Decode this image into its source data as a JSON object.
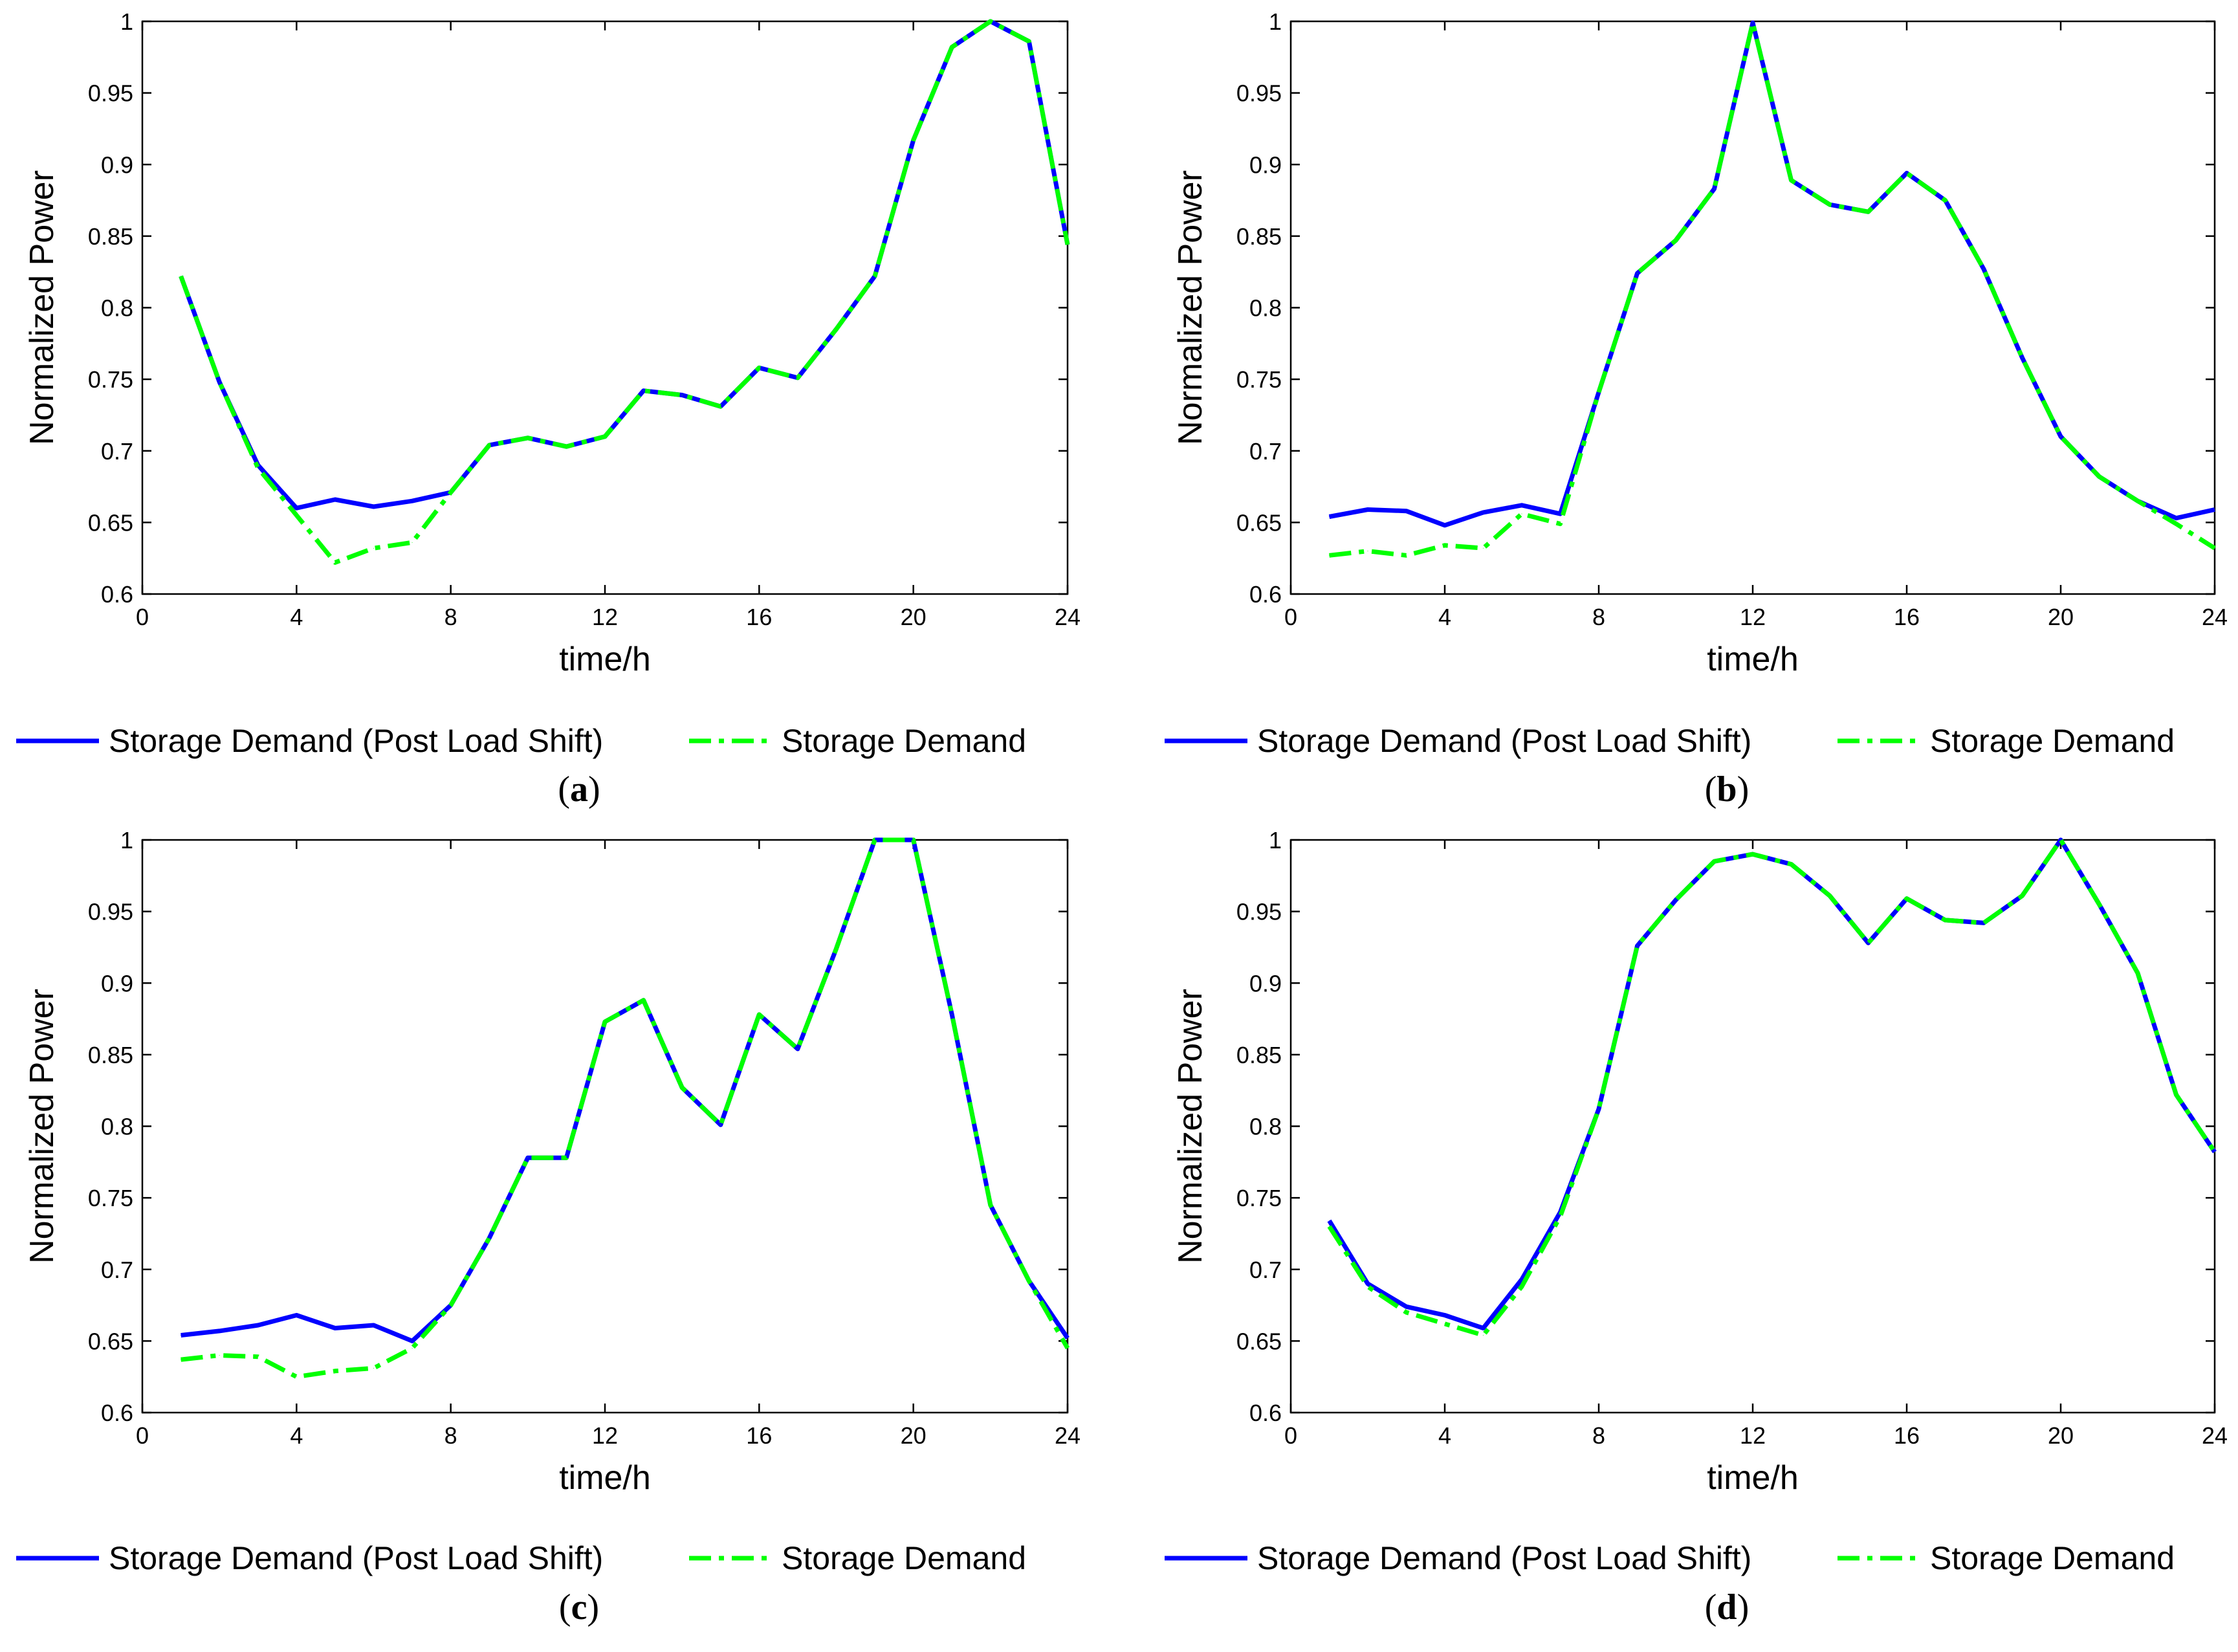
{
  "chart_data": [
    {
      "type": "line",
      "panel_label": "a",
      "xlabel": "time/h",
      "ylabel": "Normalized Power",
      "xlim": [
        0,
        24
      ],
      "ylim": [
        0.6,
        1
      ],
      "xticks": [
        "0",
        "4",
        "8",
        "12",
        "16",
        "20",
        "24"
      ],
      "yticks": [
        "0.6",
        "0.65",
        "0.7",
        "0.75",
        "0.8",
        "0.85",
        "0.9",
        "0.95",
        "1"
      ],
      "grid": false,
      "legend_position": "bottom",
      "x": [
        1,
        2,
        3,
        4,
        5,
        6,
        7,
        8,
        9,
        10,
        11,
        12,
        13,
        14,
        15,
        16,
        17,
        18,
        19,
        20,
        21,
        22,
        23,
        24
      ],
      "series": [
        {
          "name": "Storage Demand (Post Load Shift)",
          "color": "#0000ff",
          "style": "solid",
          "values": [
            0.822,
            0.748,
            0.69,
            0.66,
            0.666,
            0.661,
            0.665,
            0.671,
            0.704,
            0.709,
            0.703,
            0.71,
            0.742,
            0.739,
            0.731,
            0.758,
            0.751,
            0.785,
            0.822,
            0.917,
            0.982,
            1.0,
            0.986,
            0.844
          ]
        },
        {
          "name": "Storage Demand",
          "color": "#00ff00",
          "style": "dashdot",
          "values": [
            0.822,
            0.748,
            0.688,
            0.655,
            0.622,
            0.632,
            0.636,
            0.671,
            0.704,
            0.709,
            0.703,
            0.71,
            0.742,
            0.739,
            0.731,
            0.758,
            0.751,
            0.785,
            0.822,
            0.917,
            0.982,
            1.0,
            0.986,
            0.844
          ]
        }
      ]
    },
    {
      "type": "line",
      "panel_label": "b",
      "xlabel": "time/h",
      "ylabel": "Normalized Power",
      "xlim": [
        0,
        24
      ],
      "ylim": [
        0.6,
        1
      ],
      "xticks": [
        "0",
        "4",
        "8",
        "12",
        "16",
        "20",
        "24"
      ],
      "yticks": [
        "0.6",
        "0.65",
        "0.7",
        "0.75",
        "0.8",
        "0.85",
        "0.9",
        "0.95",
        "1"
      ],
      "grid": false,
      "legend_position": "bottom",
      "x": [
        1,
        2,
        3,
        4,
        5,
        6,
        7,
        8,
        9,
        10,
        11,
        12,
        13,
        14,
        15,
        16,
        17,
        18,
        19,
        20,
        21,
        22,
        23,
        24
      ],
      "series": [
        {
          "name": "Storage Demand (Post Load Shift)",
          "color": "#0000ff",
          "style": "solid",
          "values": [
            0.654,
            0.659,
            0.658,
            0.648,
            0.657,
            0.662,
            0.656,
            0.741,
            0.824,
            0.847,
            0.883,
            0.999,
            0.889,
            0.872,
            0.867,
            0.894,
            0.875,
            0.827,
            0.765,
            0.71,
            0.682,
            0.665,
            0.653,
            0.659
          ]
        },
        {
          "name": "Storage Demand",
          "color": "#00ff00",
          "style": "dashdot",
          "values": [
            0.627,
            0.63,
            0.627,
            0.634,
            0.632,
            0.656,
            0.649,
            0.741,
            0.824,
            0.847,
            0.883,
            0.999,
            0.889,
            0.872,
            0.867,
            0.894,
            0.875,
            0.827,
            0.765,
            0.71,
            0.682,
            0.665,
            0.649,
            0.632
          ]
        }
      ]
    },
    {
      "type": "line",
      "panel_label": "c",
      "xlabel": "time/h",
      "ylabel": "Normalized Power",
      "xlim": [
        0,
        24
      ],
      "ylim": [
        0.6,
        1
      ],
      "xticks": [
        "0",
        "4",
        "8",
        "12",
        "16",
        "20",
        "24"
      ],
      "yticks": [
        "0.6",
        "0.65",
        "0.7",
        "0.75",
        "0.8",
        "0.85",
        "0.9",
        "0.95",
        "1"
      ],
      "grid": false,
      "legend_position": "bottom",
      "x": [
        1,
        2,
        3,
        4,
        5,
        6,
        7,
        8,
        9,
        10,
        11,
        12,
        13,
        14,
        15,
        16,
        17,
        18,
        19,
        20,
        21,
        22,
        23,
        24
      ],
      "series": [
        {
          "name": "Storage Demand (Post Load Shift)",
          "color": "#0000ff",
          "style": "solid",
          "values": [
            0.654,
            0.657,
            0.661,
            0.668,
            0.659,
            0.661,
            0.65,
            0.675,
            0.722,
            0.778,
            0.778,
            0.873,
            0.888,
            0.827,
            0.801,
            0.878,
            0.854,
            0.924,
            1.0,
            1.0,
            0.878,
            0.745,
            0.692,
            0.652
          ]
        },
        {
          "name": "Storage Demand",
          "color": "#00ff00",
          "style": "dashdot",
          "values": [
            0.637,
            0.64,
            0.639,
            0.625,
            0.629,
            0.631,
            0.645,
            0.675,
            0.722,
            0.778,
            0.778,
            0.873,
            0.888,
            0.827,
            0.801,
            0.878,
            0.854,
            0.924,
            1.0,
            1.0,
            0.878,
            0.745,
            0.692,
            0.645
          ]
        }
      ]
    },
    {
      "type": "line",
      "panel_label": "d",
      "xlabel": "time/h",
      "ylabel": "Normalized Power",
      "xlim": [
        0,
        24
      ],
      "ylim": [
        0.6,
        1
      ],
      "xticks": [
        "0",
        "4",
        "8",
        "12",
        "16",
        "20",
        "24"
      ],
      "yticks": [
        "0.6",
        "0.65",
        "0.7",
        "0.75",
        "0.8",
        "0.85",
        "0.9",
        "0.95",
        "1"
      ],
      "grid": false,
      "legend_position": "bottom",
      "x": [
        1,
        2,
        3,
        4,
        5,
        6,
        7,
        8,
        9,
        10,
        11,
        12,
        13,
        14,
        15,
        16,
        17,
        18,
        19,
        20,
        21,
        22,
        23,
        24
      ],
      "series": [
        {
          "name": "Storage Demand (Post Load Shift)",
          "color": "#0000ff",
          "style": "solid",
          "values": [
            0.734,
            0.69,
            0.674,
            0.668,
            0.659,
            0.693,
            0.74,
            0.812,
            0.926,
            0.958,
            0.985,
            0.99,
            0.983,
            0.961,
            0.928,
            0.959,
            0.944,
            0.942,
            0.961,
            1.0,
            0.955,
            0.907,
            0.822,
            0.782
          ]
        },
        {
          "name": "Storage Demand",
          "color": "#00ff00",
          "style": "dashdot",
          "values": [
            0.73,
            0.688,
            0.67,
            0.662,
            0.654,
            0.688,
            0.737,
            0.812,
            0.926,
            0.958,
            0.985,
            0.99,
            0.983,
            0.961,
            0.928,
            0.959,
            0.944,
            0.942,
            0.961,
            1.0,
            0.955,
            0.907,
            0.822,
            0.782
          ]
        }
      ]
    }
  ]
}
